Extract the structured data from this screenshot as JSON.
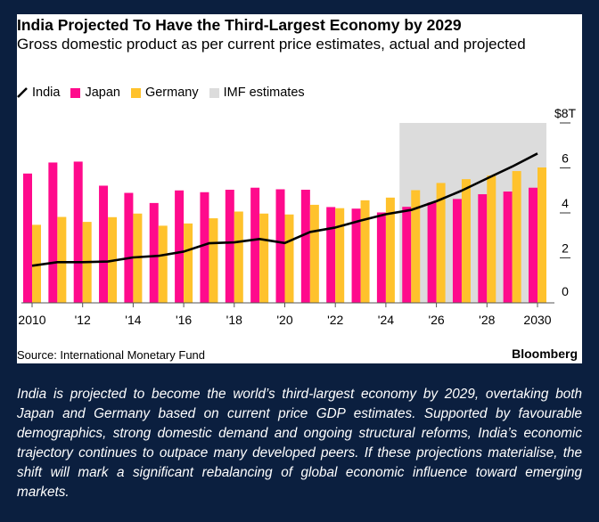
{
  "chart_data": {
    "type": "bar",
    "title": "India Projected To Have the Third-Largest Economy by 2029",
    "subtitle": "Gross domestic product as per current price estimates, actual and projected",
    "x": [
      2010,
      2011,
      2012,
      2013,
      2014,
      2015,
      2016,
      2017,
      2018,
      2019,
      2020,
      2021,
      2022,
      2023,
      2024,
      2025,
      2026,
      2027,
      2028,
      2029,
      2030
    ],
    "x_tick_labels": [
      "2010",
      "'12",
      "'14",
      "'16",
      "'18",
      "'20",
      "'22",
      "'24",
      "'26",
      "'28",
      "2030"
    ],
    "y_tick_labels": [
      "0",
      "2",
      "4",
      "6",
      "$8T"
    ],
    "ylim": [
      0,
      8
    ],
    "yunit": "trillion USD",
    "series": [
      {
        "name": "India",
        "kind": "line",
        "color": "#000000",
        "values": [
          1.65,
          1.81,
          1.81,
          1.84,
          2.02,
          2.09,
          2.28,
          2.65,
          2.69,
          2.84,
          2.66,
          3.15,
          3.35,
          3.66,
          3.94,
          4.13,
          4.52,
          4.99,
          5.53,
          6.06,
          6.64
        ]
      },
      {
        "name": "Japan",
        "kind": "bar",
        "color": "#ff0a8c",
        "values": [
          5.75,
          6.24,
          6.28,
          5.21,
          4.89,
          4.44,
          5.0,
          4.92,
          5.03,
          5.12,
          5.05,
          5.03,
          4.26,
          4.19,
          4.02,
          4.27,
          4.46,
          4.62,
          4.83,
          4.95,
          5.12
        ]
      },
      {
        "name": "Germany",
        "kind": "bar",
        "color": "#ffc22c",
        "values": [
          3.47,
          3.82,
          3.6,
          3.81,
          3.97,
          3.43,
          3.53,
          3.76,
          4.06,
          3.97,
          3.93,
          4.36,
          4.21,
          4.56,
          4.68,
          5.01,
          5.33,
          5.5,
          5.66,
          5.86,
          6.02
        ]
      }
    ],
    "shaded_region": {
      "name": "IMF estimates",
      "from": 2025,
      "to": 2030,
      "color": "#dcdcdc"
    },
    "legend": [
      "India",
      "Japan",
      "Germany",
      "IMF estimates"
    ],
    "legend_placement": "top-left",
    "grid": false,
    "source": "Source: International Monetary Fund",
    "brand": "Bloomberg"
  },
  "caption": "India is projected to become the world’s third-largest economy by 2029, overtaking both Japan and Germany based on current price GDP estimates. Supported by favourable demographics, strong domestic demand and ongoing structural reforms, India’s economic trajectory continues to outpace many developed peers. If these projections materialise, the shift will mark a significant rebalancing of global economic influence toward emerging markets."
}
